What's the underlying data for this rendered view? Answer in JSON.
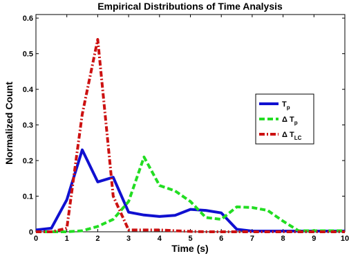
{
  "chart_data": {
    "type": "line",
    "title": "Empirical Distributions of Time Analysis",
    "xlabel": "Time (s)",
    "ylabel": "Normalized Count",
    "xlim": [
      0,
      10
    ],
    "ylim": [
      0,
      0.61
    ],
    "x_ticks": [
      "0",
      "1",
      "2",
      "3",
      "4",
      "5",
      "6",
      "7",
      "8",
      "9",
      "10"
    ],
    "y_ticks": [
      "0",
      "0.1",
      "0.2",
      "0.3",
      "0.4",
      "0.5",
      "0.6"
    ],
    "legend_position": "right",
    "grid": false,
    "series": [
      {
        "name": "Tp",
        "name_main": "T",
        "name_sub": "p",
        "color": "#1010d0",
        "style": "solid",
        "x": [
          0,
          0.5,
          1,
          1.5,
          2,
          2.5,
          3,
          3.5,
          4,
          4.5,
          5,
          5.5,
          6,
          6.5,
          7,
          7.5,
          8,
          8.5,
          9,
          9.5,
          10
        ],
        "y": [
          0.005,
          0.01,
          0.09,
          0.23,
          0.14,
          0.153,
          0.055,
          0.047,
          0.043,
          0.046,
          0.063,
          0.06,
          0.053,
          0.007,
          0.002,
          0.002,
          0.002,
          0.002,
          0.002,
          0.002,
          0.002
        ]
      },
      {
        "name": "Δ Tp",
        "name_main": "Δ T",
        "name_sub": "p",
        "color": "#22dd22",
        "style": "dashed",
        "x": [
          0,
          0.5,
          1,
          1.5,
          2,
          2.5,
          3,
          3.5,
          4,
          4.5,
          5,
          5.5,
          6,
          6.5,
          7,
          7.5,
          8,
          8.5,
          9,
          9.5,
          10
        ],
        "y": [
          0.0,
          0.0,
          0.0,
          0.003,
          0.015,
          0.035,
          0.085,
          0.21,
          0.13,
          0.115,
          0.085,
          0.04,
          0.035,
          0.07,
          0.068,
          0.06,
          0.03,
          0.003,
          0.003,
          0.003,
          0.003
        ]
      },
      {
        "name": "Δ TLC",
        "name_main": "Δ T",
        "name_sub": "LC",
        "color": "#cc1111",
        "style": "dash-dot",
        "x": [
          0,
          0.5,
          1,
          1.5,
          2,
          2.5,
          3,
          3.5,
          4,
          4.5,
          5,
          5.5,
          6,
          6.5,
          7,
          7.5,
          8,
          8.5,
          9,
          9.5,
          10
        ],
        "y": [
          0.0,
          0.0,
          0.01,
          0.33,
          0.54,
          0.1,
          0.005,
          0.005,
          0.005,
          0.003,
          0.001,
          0.0,
          0.0,
          0.0,
          0.0,
          0.0,
          0.0,
          0.0,
          0.0,
          0.0,
          0.0
        ]
      }
    ]
  }
}
